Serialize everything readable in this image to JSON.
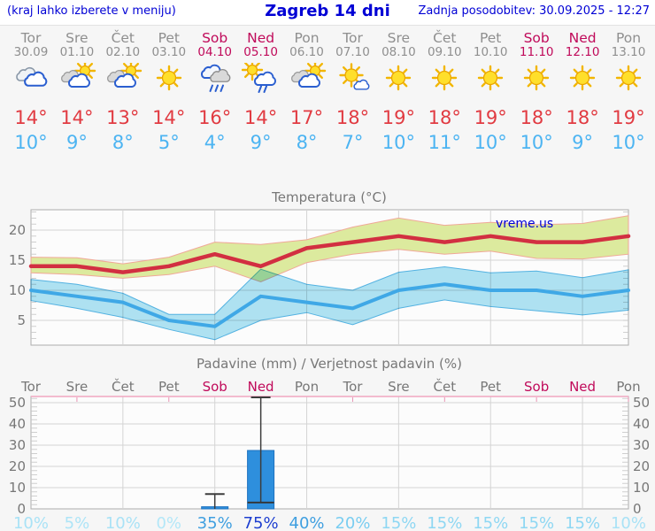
{
  "header": {
    "left_note": "(kraj lahko izberete v meniju)",
    "title": "Zagreb 14 dni",
    "updated": "Zadnja posodobitev: 30.09.2025 - 12:27"
  },
  "colors": {
    "accent_blue": "#0000d5",
    "weekend": "#c00a5a",
    "weekday": "#8f8f8f",
    "tmax_text": "#e13b42",
    "tmin_text": "#4cb4f2",
    "tmax_line": "#d22f41",
    "tmax_band": "#dcea9e",
    "tmax_band_edge": "#f0a898",
    "tmin_line": "#3fa8e6",
    "tmin_band": "#b0e4f4",
    "tmin_band_edge": "#54b4e4",
    "bar": "#2e8fdd",
    "axis_text": "#777777"
  },
  "days": [
    {
      "name": "Tor",
      "date": "30.09",
      "weekend": false,
      "icon": "cloudy",
      "tmax": "14°",
      "tmin": "10°"
    },
    {
      "name": "Sre",
      "date": "01.10",
      "weekend": false,
      "icon": "sun-cloud",
      "tmax": "14°",
      "tmin": "9°"
    },
    {
      "name": "Čet",
      "date": "02.10",
      "weekend": false,
      "icon": "sun-cloud",
      "tmax": "13°",
      "tmin": "8°"
    },
    {
      "name": "Pet",
      "date": "03.10",
      "weekend": false,
      "icon": "sunny",
      "tmax": "14°",
      "tmin": "5°"
    },
    {
      "name": "Sob",
      "date": "04.10",
      "weekend": true,
      "icon": "rain",
      "tmax": "16°",
      "tmin": "4°"
    },
    {
      "name": "Ned",
      "date": "05.10",
      "weekend": true,
      "icon": "sun-rain",
      "tmax": "14°",
      "tmin": "9°"
    },
    {
      "name": "Pon",
      "date": "06.10",
      "weekend": false,
      "icon": "sun-cloud",
      "tmax": "17°",
      "tmin": "8°"
    },
    {
      "name": "Tor",
      "date": "07.10",
      "weekend": false,
      "icon": "sun-small-cloud",
      "tmax": "18°",
      "tmin": "7°"
    },
    {
      "name": "Sre",
      "date": "08.10",
      "weekend": false,
      "icon": "sunny",
      "tmax": "19°",
      "tmin": "10°"
    },
    {
      "name": "Čet",
      "date": "09.10",
      "weekend": false,
      "icon": "sunny",
      "tmax": "18°",
      "tmin": "11°"
    },
    {
      "name": "Pet",
      "date": "10.10",
      "weekend": false,
      "icon": "sunny",
      "tmax": "19°",
      "tmin": "10°"
    },
    {
      "name": "Sob",
      "date": "11.10",
      "weekend": true,
      "icon": "sunny",
      "tmax": "18°",
      "tmin": "10°"
    },
    {
      "name": "Ned",
      "date": "12.10",
      "weekend": true,
      "icon": "sunny",
      "tmax": "18°",
      "tmin": "9°"
    },
    {
      "name": "Pon",
      "date": "13.10",
      "weekend": false,
      "icon": "sunny",
      "tmax": "19°",
      "tmin": "10°"
    }
  ],
  "chart_data": [
    {
      "type": "line",
      "title": "Temperatura (°C)",
      "watermark": "vreme.us",
      "categories": [
        "Tor",
        "Sre",
        "Čet",
        "Pet",
        "Sob",
        "Ned",
        "Pon",
        "Tor",
        "Sre",
        "Čet",
        "Pet",
        "Sob",
        "Ned",
        "Pon"
      ],
      "ylim": [
        1,
        23.5
      ],
      "yticks": [
        5,
        10,
        15,
        20
      ],
      "grid": true,
      "series": [
        {
          "name": "tmax",
          "values": [
            14,
            14,
            13,
            14,
            16,
            14,
            17,
            18,
            19,
            18,
            19,
            18,
            18,
            19
          ]
        },
        {
          "name": "tmax_band_hi",
          "values": [
            15.5,
            15.4,
            14.4,
            15.5,
            18,
            17.6,
            18.4,
            20.5,
            22,
            20.8,
            21.3,
            20.9,
            21.1,
            22.4
          ]
        },
        {
          "name": "tmax_band_lo",
          "values": [
            12.9,
            12.6,
            12,
            12.6,
            14,
            11.4,
            14.6,
            16,
            16.8,
            16,
            16.5,
            15.3,
            15.2,
            16
          ]
        },
        {
          "name": "tmin",
          "values": [
            10,
            9,
            8,
            5,
            4,
            9,
            8,
            7,
            10,
            11,
            10,
            10,
            9,
            10
          ]
        },
        {
          "name": "tmin_band_hi",
          "values": [
            11.8,
            11,
            9.5,
            6,
            6,
            13.5,
            11,
            10,
            13,
            13.9,
            12.9,
            13.2,
            12.1,
            13.4
          ]
        },
        {
          "name": "tmin_band_lo",
          "values": [
            8.3,
            7,
            5.5,
            3.5,
            1.8,
            5,
            6.3,
            4.3,
            7,
            8.4,
            7.3,
            6.6,
            5.9,
            6.7
          ]
        }
      ]
    },
    {
      "type": "bar",
      "title": "Padavine (mm) / Verjetnost padavin (%)",
      "categories": [
        "Tor",
        "Sre",
        "Čet",
        "Pet",
        "Sob",
        "Ned",
        "Pon",
        "Tor",
        "Sre",
        "Čet",
        "Pet",
        "Sob",
        "Ned",
        "Pon"
      ],
      "ylim": [
        0,
        53
      ],
      "yticks": [
        0,
        10,
        20,
        30,
        40,
        50
      ],
      "values": [
        0,
        0,
        0,
        0,
        1,
        27.5,
        0,
        0,
        0,
        0,
        0,
        0,
        0,
        0
      ],
      "bars": [
        {
          "index": 5,
          "value": 1,
          "whisker_max": 7
        },
        {
          "index": 6,
          "value": 27.5,
          "inner": 3,
          "whisker_max": 52.5
        }
      ],
      "pop": [
        {
          "label": "10%",
          "color": "#a9e2f6"
        },
        {
          "label": "5%",
          "color": "#ade4f7"
        },
        {
          "label": "10%",
          "color": "#a9e2f6"
        },
        {
          "label": "0%",
          "color": "#b3e7f8"
        },
        {
          "label": "35%",
          "color": "#3f9fe0"
        },
        {
          "label": "75%",
          "color": "#1d3ed0"
        },
        {
          "label": "40%",
          "color": "#3f9fe0"
        },
        {
          "label": "20%",
          "color": "#79cdf1"
        },
        {
          "label": "15%",
          "color": "#8ed7f3"
        },
        {
          "label": "15%",
          "color": "#8ed7f3"
        },
        {
          "label": "15%",
          "color": "#8ed7f3"
        },
        {
          "label": "15%",
          "color": "#8ed7f3"
        },
        {
          "label": "15%",
          "color": "#8ed7f3"
        },
        {
          "label": "10%",
          "color": "#a9e2f6"
        }
      ]
    }
  ]
}
